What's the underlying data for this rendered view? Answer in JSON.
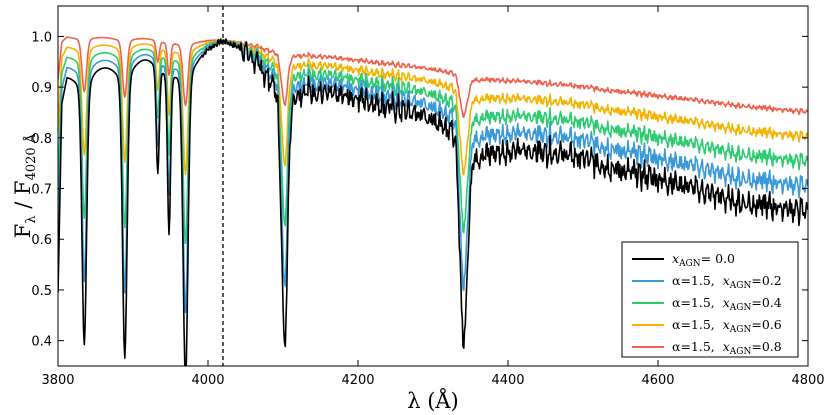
{
  "chart_data": {
    "type": "line",
    "xlabel": "λ (Å)",
    "ylabel_main": "F",
    "ylabel_sub1": "λ",
    "ylabel_sep": " / F",
    "ylabel_sub2": "4020 Å",
    "xlim": [
      3800,
      4800
    ],
    "ylim": [
      0.35,
      1.06
    ],
    "x_ticks": [
      3800,
      4000,
      4200,
      4400,
      4600,
      4800
    ],
    "y_ticks": [
      0.4,
      0.5,
      0.6,
      0.7,
      0.8,
      0.9,
      1.0
    ],
    "x_tick_labels": [
      "3800",
      "4000",
      "4200",
      "4400",
      "4600",
      "4800"
    ],
    "y_tick_labels": [
      "0.4",
      "0.5",
      "0.6",
      "0.7",
      "0.8",
      "0.9",
      "1.0"
    ],
    "vline_x": 4020,
    "grid": false,
    "legend_position": "lower-right",
    "series": [
      {
        "name": "x_AGN = 0.0",
        "alpha": null,
        "x_agn": 0.0,
        "color": "#000000",
        "legend": {
          "alpha": "",
          "x": "x",
          "sub": "AGN",
          "eq": "= 0.0"
        }
      },
      {
        "name": "α=1.5, x_AGN=0.2",
        "alpha": 1.5,
        "x_agn": 0.2,
        "color": "#3a9ad9",
        "legend": {
          "alpha": "α=1.5,",
          "x": "x",
          "sub": "AGN",
          "eq": "=0.2"
        }
      },
      {
        "name": "α=1.5, x_AGN=0.4",
        "alpha": 1.5,
        "x_agn": 0.4,
        "color": "#2ecc71",
        "legend": {
          "alpha": "α=1.5,",
          "x": "x",
          "sub": "AGN",
          "eq": "=0.4"
        }
      },
      {
        "name": "α=1.5, x_AGN=0.6",
        "alpha": 1.5,
        "x_agn": 0.6,
        "color": "#f5b301",
        "legend": {
          "alpha": "α=1.5,",
          "x": "x",
          "sub": "AGN",
          "eq": "=0.6"
        }
      },
      {
        "name": "α=1.5, x_AGN=0.8",
        "alpha": 1.5,
        "x_agn": 0.8,
        "color": "#f0604d",
        "legend": {
          "alpha": "α=1.5,",
          "x": "x",
          "sub": "AGN",
          "eq": "=0.8"
        }
      }
    ],
    "base_spectrum": {
      "continuum": [
        [
          3800,
          0.5
        ],
        [
          3805,
          0.88
        ],
        [
          3812,
          0.94
        ],
        [
          3825,
          0.95
        ],
        [
          3850,
          0.97
        ],
        [
          3875,
          0.975
        ],
        [
          3900,
          0.985
        ],
        [
          3930,
          0.99
        ],
        [
          3955,
          0.99
        ],
        [
          3985,
          0.99
        ],
        [
          4020,
          1.0
        ],
        [
          4050,
          0.98
        ],
        [
          4075,
          0.95
        ],
        [
          4120,
          0.92
        ],
        [
          4160,
          0.89
        ],
        [
          4200,
          0.88
        ],
        [
          4250,
          0.86
        ],
        [
          4300,
          0.85
        ],
        [
          4330,
          0.85
        ],
        [
          4360,
          0.79
        ],
        [
          4400,
          0.78
        ],
        [
          4450,
          0.775
        ],
        [
          4500,
          0.76
        ],
        [
          4550,
          0.735
        ],
        [
          4600,
          0.72
        ],
        [
          4650,
          0.7
        ],
        [
          4700,
          0.675
        ],
        [
          4750,
          0.665
        ],
        [
          4800,
          0.655
        ]
      ],
      "absorption_lines": [
        {
          "center": 3835,
          "depth": 0.51,
          "width": 3.0
        },
        {
          "center": 3889,
          "depth": 0.54,
          "width": 3.0
        },
        {
          "center": 3933,
          "depth": 0.2,
          "width": 2.0
        },
        {
          "center": 3948,
          "depth": 0.3,
          "width": 2.0
        },
        {
          "center": 3970,
          "depth": 0.58,
          "width": 3.2
        },
        {
          "center": 4102,
          "depth": 0.5,
          "width": 4.0
        },
        {
          "center": 4341,
          "depth": 0.45,
          "width": 5.0
        }
      ]
    },
    "agn_model": {
      "continuum_at_3800": 1.02,
      "continuum_at_4800": 0.9
    }
  }
}
